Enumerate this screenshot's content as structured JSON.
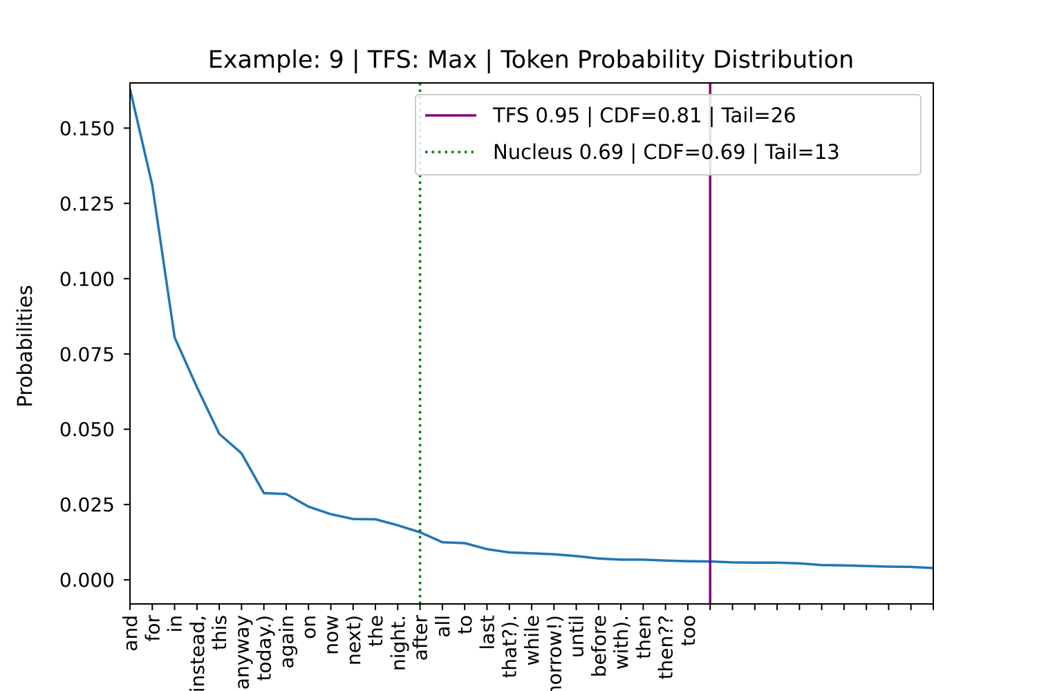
{
  "chart_data": {
    "type": "line",
    "title": "Example: 9 | TFS: Max | Token Probability Distribution",
    "xlabel": "",
    "ylabel": "Probabilities",
    "ylim": [
      -0.008,
      0.165
    ],
    "yticks": [
      "0.000",
      "0.025",
      "0.050",
      "0.075",
      "0.100",
      "0.125",
      "0.150"
    ],
    "yticks_values": [
      0.0,
      0.025,
      0.05,
      0.075,
      0.1,
      0.125,
      0.15
    ],
    "categories": [
      "and",
      "for",
      "in",
      "instead,",
      "this",
      "anyway",
      "today.)",
      "again",
      "on",
      "now",
      "next)",
      "the",
      "night.",
      "after",
      "all",
      "to",
      "last",
      "that?).",
      "while",
      "tomorrow!)",
      "until",
      "before",
      "with).",
      "then",
      "then??",
      "too",
      "",
      "",
      "",
      "",
      "",
      "",
      "",
      "",
      "",
      "",
      ""
    ],
    "series": [
      {
        "values": [
          0.163,
          0.131,
          0.0805,
          0.064,
          0.0485,
          0.042,
          0.0288,
          0.0285,
          0.0243,
          0.0218,
          0.0202,
          0.0201,
          0.0181,
          0.0158,
          0.0125,
          0.0122,
          0.0102,
          0.0091,
          0.0088,
          0.0085,
          0.0079,
          0.0071,
          0.0067,
          0.0067,
          0.0064,
          0.0062,
          0.0061,
          0.0058,
          0.0057,
          0.0057,
          0.0055,
          0.0049,
          0.0048,
          0.0046,
          0.0044,
          0.0043,
          0.0039
        ],
        "color": "#1f77b4"
      }
    ],
    "vlines": [
      {
        "label": "TFS 0.95 | CDF=0.81 | Tail=26",
        "x_index": 26,
        "color": "#800080",
        "style": "solid"
      },
      {
        "label": "Nucleus 0.69 | CDF=0.69 | Tail=13",
        "x_index": 13,
        "color": "#008000",
        "style": "dotted"
      }
    ],
    "legend_position": "top-right",
    "grid": false
  }
}
